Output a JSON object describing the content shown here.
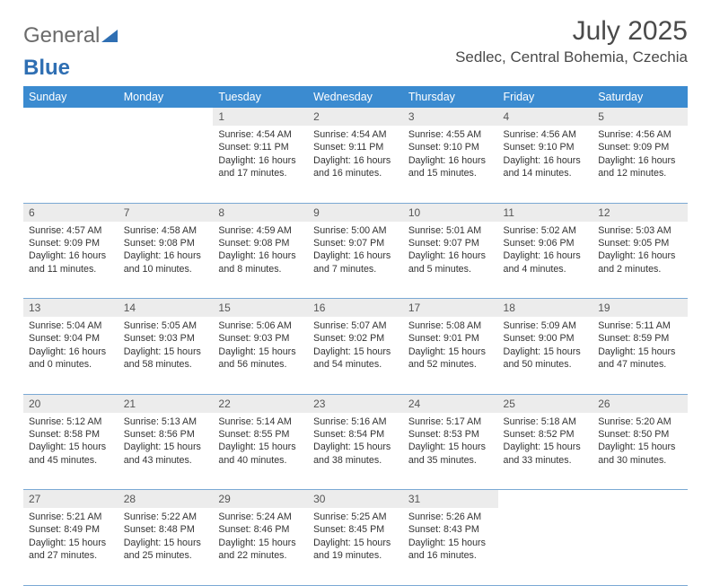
{
  "logo": {
    "text1": "General",
    "text2": "Blue"
  },
  "title": "July 2025",
  "location": "Sedlec, Central Bohemia, Czechia",
  "colors": {
    "header_bg": "#3b8bd0",
    "header_text": "#ffffff",
    "daynum_bg": "#ececec",
    "cell_border": "#7aa9d4",
    "logo_gray": "#6b6b6b",
    "logo_blue": "#2f6fb3"
  },
  "weekdays": [
    "Sunday",
    "Monday",
    "Tuesday",
    "Wednesday",
    "Thursday",
    "Friday",
    "Saturday"
  ],
  "weeks": [
    [
      null,
      null,
      {
        "n": "1",
        "sr": "4:54 AM",
        "ss": "9:11 PM",
        "dl": "16 hours and 17 minutes."
      },
      {
        "n": "2",
        "sr": "4:54 AM",
        "ss": "9:11 PM",
        "dl": "16 hours and 16 minutes."
      },
      {
        "n": "3",
        "sr": "4:55 AM",
        "ss": "9:10 PM",
        "dl": "16 hours and 15 minutes."
      },
      {
        "n": "4",
        "sr": "4:56 AM",
        "ss": "9:10 PM",
        "dl": "16 hours and 14 minutes."
      },
      {
        "n": "5",
        "sr": "4:56 AM",
        "ss": "9:09 PM",
        "dl": "16 hours and 12 minutes."
      }
    ],
    [
      {
        "n": "6",
        "sr": "4:57 AM",
        "ss": "9:09 PM",
        "dl": "16 hours and 11 minutes."
      },
      {
        "n": "7",
        "sr": "4:58 AM",
        "ss": "9:08 PM",
        "dl": "16 hours and 10 minutes."
      },
      {
        "n": "8",
        "sr": "4:59 AM",
        "ss": "9:08 PM",
        "dl": "16 hours and 8 minutes."
      },
      {
        "n": "9",
        "sr": "5:00 AM",
        "ss": "9:07 PM",
        "dl": "16 hours and 7 minutes."
      },
      {
        "n": "10",
        "sr": "5:01 AM",
        "ss": "9:07 PM",
        "dl": "16 hours and 5 minutes."
      },
      {
        "n": "11",
        "sr": "5:02 AM",
        "ss": "9:06 PM",
        "dl": "16 hours and 4 minutes."
      },
      {
        "n": "12",
        "sr": "5:03 AM",
        "ss": "9:05 PM",
        "dl": "16 hours and 2 minutes."
      }
    ],
    [
      {
        "n": "13",
        "sr": "5:04 AM",
        "ss": "9:04 PM",
        "dl": "16 hours and 0 minutes."
      },
      {
        "n": "14",
        "sr": "5:05 AM",
        "ss": "9:03 PM",
        "dl": "15 hours and 58 minutes."
      },
      {
        "n": "15",
        "sr": "5:06 AM",
        "ss": "9:03 PM",
        "dl": "15 hours and 56 minutes."
      },
      {
        "n": "16",
        "sr": "5:07 AM",
        "ss": "9:02 PM",
        "dl": "15 hours and 54 minutes."
      },
      {
        "n": "17",
        "sr": "5:08 AM",
        "ss": "9:01 PM",
        "dl": "15 hours and 52 minutes."
      },
      {
        "n": "18",
        "sr": "5:09 AM",
        "ss": "9:00 PM",
        "dl": "15 hours and 50 minutes."
      },
      {
        "n": "19",
        "sr": "5:11 AM",
        "ss": "8:59 PM",
        "dl": "15 hours and 47 minutes."
      }
    ],
    [
      {
        "n": "20",
        "sr": "5:12 AM",
        "ss": "8:58 PM",
        "dl": "15 hours and 45 minutes."
      },
      {
        "n": "21",
        "sr": "5:13 AM",
        "ss": "8:56 PM",
        "dl": "15 hours and 43 minutes."
      },
      {
        "n": "22",
        "sr": "5:14 AM",
        "ss": "8:55 PM",
        "dl": "15 hours and 40 minutes."
      },
      {
        "n": "23",
        "sr": "5:16 AM",
        "ss": "8:54 PM",
        "dl": "15 hours and 38 minutes."
      },
      {
        "n": "24",
        "sr": "5:17 AM",
        "ss": "8:53 PM",
        "dl": "15 hours and 35 minutes."
      },
      {
        "n": "25",
        "sr": "5:18 AM",
        "ss": "8:52 PM",
        "dl": "15 hours and 33 minutes."
      },
      {
        "n": "26",
        "sr": "5:20 AM",
        "ss": "8:50 PM",
        "dl": "15 hours and 30 minutes."
      }
    ],
    [
      {
        "n": "27",
        "sr": "5:21 AM",
        "ss": "8:49 PM",
        "dl": "15 hours and 27 minutes."
      },
      {
        "n": "28",
        "sr": "5:22 AM",
        "ss": "8:48 PM",
        "dl": "15 hours and 25 minutes."
      },
      {
        "n": "29",
        "sr": "5:24 AM",
        "ss": "8:46 PM",
        "dl": "15 hours and 22 minutes."
      },
      {
        "n": "30",
        "sr": "5:25 AM",
        "ss": "8:45 PM",
        "dl": "15 hours and 19 minutes."
      },
      {
        "n": "31",
        "sr": "5:26 AM",
        "ss": "8:43 PM",
        "dl": "15 hours and 16 minutes."
      },
      null,
      null
    ]
  ],
  "labels": {
    "sunrise": "Sunrise:",
    "sunset": "Sunset:",
    "daylight": "Daylight:"
  }
}
